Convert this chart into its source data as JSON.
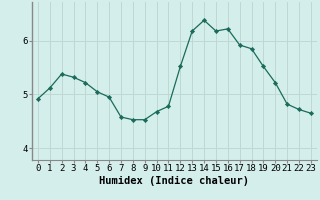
{
  "x": [
    0,
    1,
    2,
    3,
    4,
    5,
    6,
    7,
    8,
    9,
    10,
    11,
    12,
    13,
    14,
    15,
    16,
    17,
    18,
    19,
    20,
    21,
    22,
    23
  ],
  "y": [
    4.92,
    5.12,
    5.38,
    5.32,
    5.22,
    5.05,
    4.95,
    4.58,
    4.53,
    4.53,
    4.68,
    4.78,
    5.52,
    6.18,
    6.38,
    6.18,
    6.22,
    5.92,
    5.85,
    5.52,
    5.22,
    4.82,
    4.72,
    4.65
  ],
  "title": "",
  "xlabel": "Humidex (Indice chaleur)",
  "ylabel": "",
  "ylim": [
    3.78,
    6.72
  ],
  "xlim": [
    -0.5,
    23.5
  ],
  "yticks": [
    4,
    5,
    6
  ],
  "xticks": [
    0,
    1,
    2,
    3,
    4,
    5,
    6,
    7,
    8,
    9,
    10,
    11,
    12,
    13,
    14,
    15,
    16,
    17,
    18,
    19,
    20,
    21,
    22,
    23
  ],
  "line_color": "#1a6b5a",
  "marker_color": "#1a6b5a",
  "bg_color": "#d4eeeb",
  "grid_color": "#c0d8d4",
  "spine_color": "#888888",
  "xlabel_fontsize": 7.5,
  "tick_fontsize": 6.5
}
